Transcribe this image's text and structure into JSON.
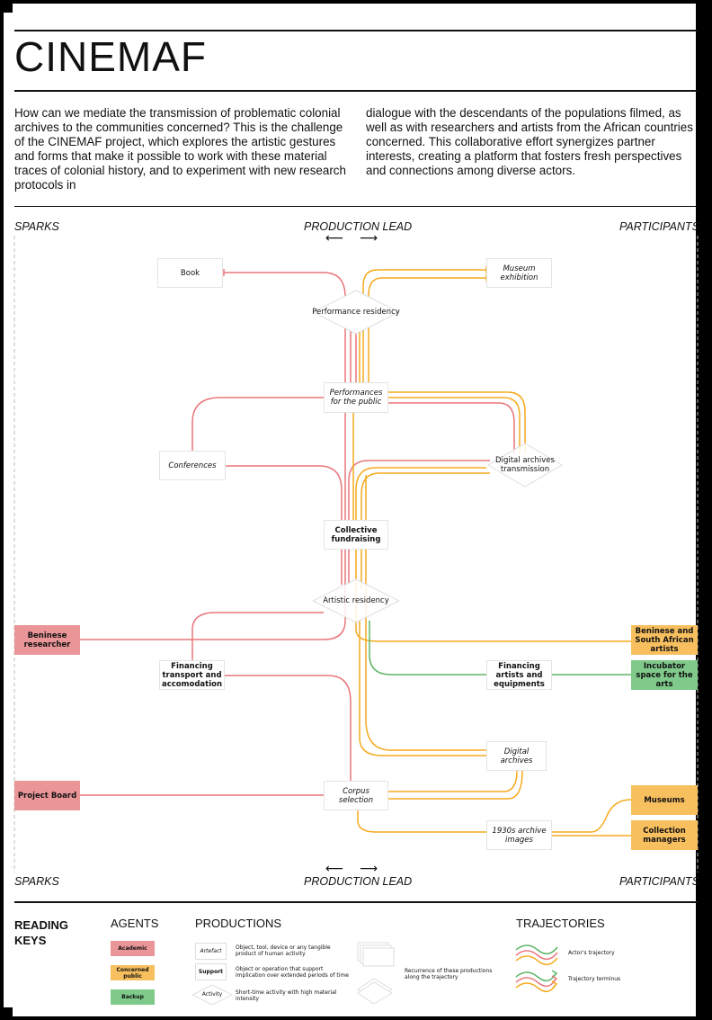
{
  "title": "CINEMAF",
  "intro": {
    "left": "How can we mediate the transmission of problematic colonial archives to the communities concerned? This is the challenge of the CINEMAF project, which explores the artistic gestures and forms that make it possible to work with these material traces of colonial history, and to experiment with new research protocols in",
    "right": "dialogue with the descendants of the populations filmed, as well as with researchers and artists from the African countries concerned. This collaborative effort synergizes partner interests, creating a platform that fosters fresh perspectives and connections among diverse actors."
  },
  "axis": {
    "left": "SPARKS",
    "center": "PRODUCTION LEAD",
    "right": "PARTICIPANTS",
    "arrow_left": "⟵",
    "arrow_right": "⟶"
  },
  "colors": {
    "academic": "#ea9598",
    "concerned_public": "#f8bf5f",
    "backup": "#7fc98a",
    "red_line": "#e9767c",
    "orange_line": "#f5aa1e",
    "green_line": "#5bb563"
  },
  "nodes": {
    "book": "Book",
    "museum_exhibition": "Museum exhibition",
    "performance_residency": "Performance residency",
    "performances_public": "Performances for the public",
    "conferences": "Conferences",
    "digital_archives_transmission": "Digital archives transmission",
    "collective_fundraising": "Collective fundraising",
    "artistic_residency": "Artistic residency",
    "financing_transport": "Financing transport and accomodation",
    "financing_artists": "Financing artists and equipments",
    "digital_archives": "Digital archives",
    "corpus_selection": "Corpus selection",
    "archive_images": "1930s archive images"
  },
  "agents": {
    "beninese_researcher": "Beninese researcher",
    "project_board": "Project Board",
    "beninese_sa_artists": "Beninese and South African artists",
    "incubator": "Incubator space for the arts",
    "museums": "Museums",
    "collection_managers": "Collection managers"
  },
  "legend": {
    "title": "READING KEYS",
    "agents_title": "AGENTS",
    "agents": [
      "Academic",
      "Concerned public",
      "Backup"
    ],
    "productions_title": "PRODUCTIONS",
    "artefact": "Artefact",
    "artefact_desc": "Object, tool, device or any tangible product of human activity",
    "support": "Support",
    "support_desc": "Object or operation that support implication over extended periods of time",
    "activity": "Activity",
    "activity_desc": "Short-time activity with high material intensity",
    "recurrence_desc": "Recurrence of these productions along the trajectory",
    "trajectories_title": "TRAJECTORIES",
    "actor_trajectory": "Actor's trajectory",
    "terminus": "Trajectory terminus"
  }
}
